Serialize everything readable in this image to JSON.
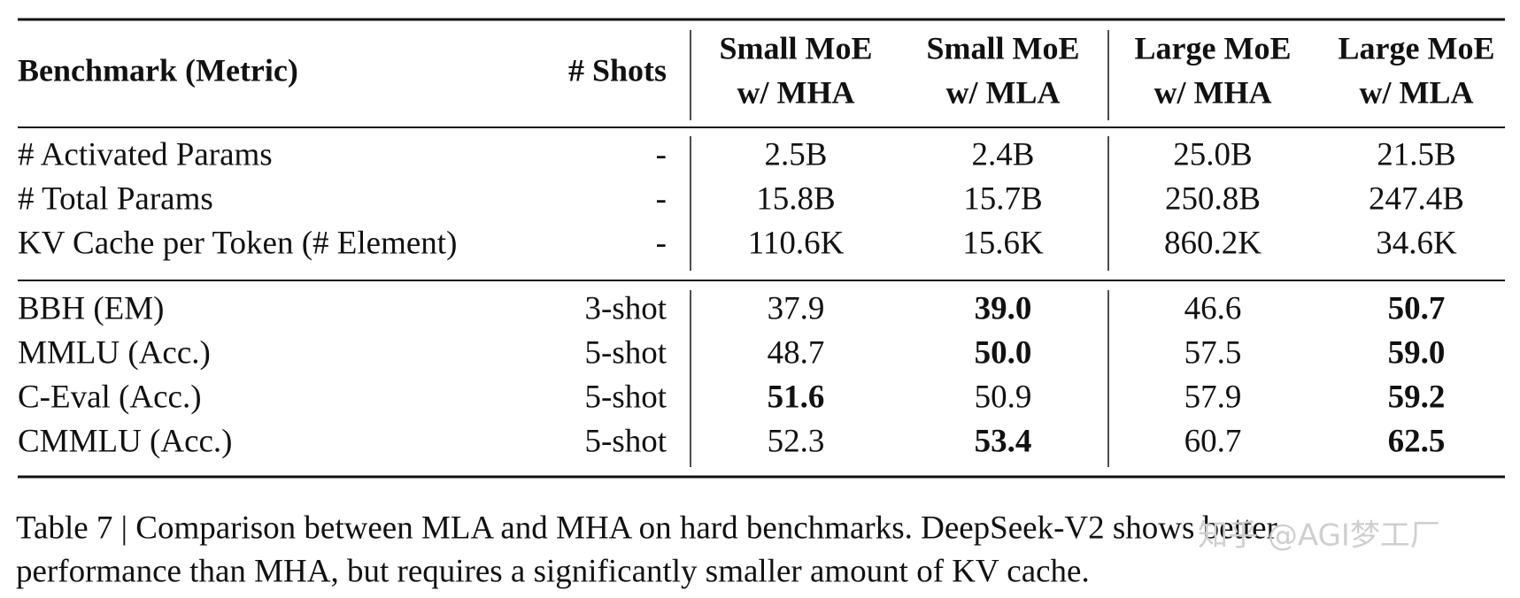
{
  "table": {
    "header": [
      "Benchmark (Metric)",
      "# Shots",
      [
        "Small MoE",
        "w/ MHA"
      ],
      [
        "Small MoE",
        "w/ MLA"
      ],
      [
        "Large MoE",
        "w/ MHA"
      ],
      [
        "Large MoE",
        "w/ MLA"
      ]
    ],
    "groups": [
      [
        {
          "cells": [
            "# Activated Params",
            "-",
            "2.5B",
            "2.4B",
            "25.0B",
            "21.5B"
          ],
          "bold": []
        },
        {
          "cells": [
            "# Total Params",
            "-",
            "15.8B",
            "15.7B",
            "250.8B",
            "247.4B"
          ],
          "bold": []
        },
        {
          "cells": [
            "KV Cache per Token (# Element)",
            "-",
            "110.6K",
            "15.6K",
            "860.2K",
            "34.6K"
          ],
          "bold": []
        }
      ],
      [
        {
          "cells": [
            "BBH (EM)",
            "3-shot",
            "37.9",
            "39.0",
            "46.6",
            "50.7"
          ],
          "bold": [
            3,
            5
          ]
        },
        {
          "cells": [
            "MMLU (Acc.)",
            "5-shot",
            "48.7",
            "50.0",
            "57.5",
            "59.0"
          ],
          "bold": [
            3,
            5
          ]
        },
        {
          "cells": [
            "C-Eval (Acc.)",
            "5-shot",
            "51.6",
            "50.9",
            "57.9",
            "59.2"
          ],
          "bold": [
            2,
            5
          ]
        },
        {
          "cells": [
            "CMMLU (Acc.)",
            "5-shot",
            "52.3",
            "53.4",
            "60.7",
            "62.5"
          ],
          "bold": [
            3,
            5
          ]
        }
      ]
    ]
  },
  "caption": [
    "Table 7 | Comparison between MLA and MHA on hard benchmarks. DeepSeek-V2 shows better",
    "performance than MHA, but requires a significantly smaller amount of KV cache."
  ],
  "watermark": "知乎 @AGI梦工厂"
}
